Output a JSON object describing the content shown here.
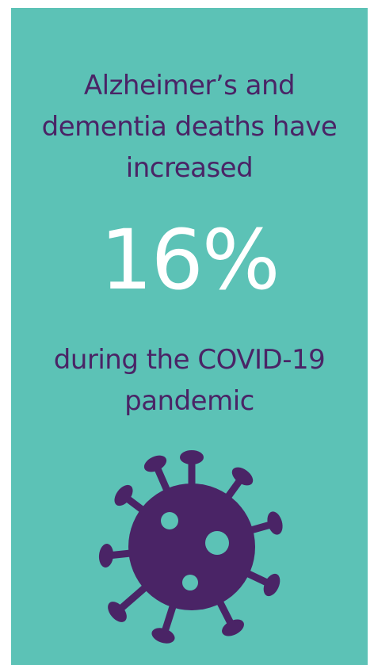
{
  "infographic": {
    "headline_lines": [
      "Alzheimer’s and",
      "dementia deaths have",
      "increased"
    ],
    "stat_value": "16%",
    "context_lines": [
      "during the COVID-19",
      "pandemic"
    ]
  },
  "colors": {
    "background": "#5cc2b6",
    "text": "#4a2466",
    "stat": "#ffffff",
    "icon": "#4a2466"
  },
  "icons": {
    "virus": "coronavirus-icon"
  }
}
